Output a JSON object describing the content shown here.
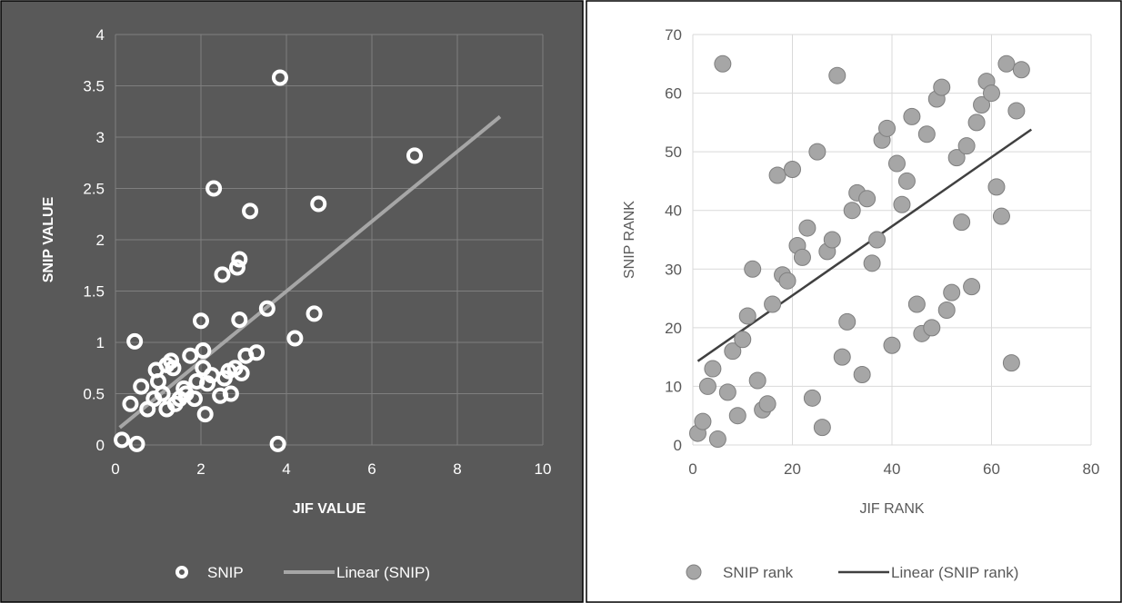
{
  "chart_data": [
    {
      "type": "scatter",
      "xlabel": "JIF VALUE",
      "ylabel": "SNIP VALUE",
      "xlim": [
        0,
        10
      ],
      "ylim": [
        0,
        4
      ],
      "xticks": [
        "0",
        "2",
        "4",
        "6",
        "8",
        "10"
      ],
      "yticks": [
        "0",
        "0.5",
        "1",
        "1.5",
        "2",
        "2.5",
        "3",
        "3.5",
        "4"
      ],
      "grid": true,
      "legend_position": "bottom",
      "colors": {
        "background": "#595959",
        "marker": "#ffffff",
        "trendline": "#a6a6a6",
        "text": "#ffffff",
        "grid": "#7f7f7f"
      },
      "series": [
        {
          "name": "SNIP",
          "points": [
            [
              0.15,
              0.05
            ],
            [
              0.5,
              0.01
            ],
            [
              3.8,
              0.01
            ],
            [
              0.45,
              1.01
            ],
            [
              0.35,
              0.4
            ],
            [
              0.6,
              0.57
            ],
            [
              0.75,
              0.35
            ],
            [
              0.9,
              0.45
            ],
            [
              0.95,
              0.73
            ],
            [
              1.0,
              0.62
            ],
            [
              1.1,
              0.5
            ],
            [
              1.2,
              0.35
            ],
            [
              1.2,
              0.78
            ],
            [
              1.3,
              0.82
            ],
            [
              1.35,
              0.75
            ],
            [
              1.4,
              0.4
            ],
            [
              1.5,
              0.45
            ],
            [
              1.6,
              0.55
            ],
            [
              1.65,
              0.5
            ],
            [
              1.75,
              0.87
            ],
            [
              1.85,
              0.45
            ],
            [
              1.9,
              0.62
            ],
            [
              2.0,
              1.21
            ],
            [
              2.05,
              0.75
            ],
            [
              2.05,
              0.92
            ],
            [
              2.1,
              0.3
            ],
            [
              2.15,
              0.6
            ],
            [
              2.25,
              0.68
            ],
            [
              2.3,
              2.5
            ],
            [
              2.45,
              0.48
            ],
            [
              2.5,
              1.66
            ],
            [
              2.55,
              0.65
            ],
            [
              2.65,
              0.72
            ],
            [
              2.7,
              0.5
            ],
            [
              2.8,
              0.75
            ],
            [
              2.85,
              1.73
            ],
            [
              2.9,
              1.22
            ],
            [
              2.9,
              1.81
            ],
            [
              2.95,
              0.7
            ],
            [
              3.05,
              0.87
            ],
            [
              3.15,
              2.28
            ],
            [
              3.3,
              0.9
            ],
            [
              3.55,
              1.33
            ],
            [
              3.85,
              3.58
            ],
            [
              4.2,
              1.04
            ],
            [
              4.65,
              1.28
            ],
            [
              4.75,
              2.35
            ],
            [
              7.0,
              2.82
            ]
          ]
        },
        {
          "name": "Linear (SNIP)",
          "kind": "trendline",
          "from": [
            0.1,
            0.17
          ],
          "to": [
            9.0,
            3.2
          ]
        }
      ]
    },
    {
      "type": "scatter",
      "xlabel": "JIF RANK",
      "ylabel": "SNIP RANK",
      "xlim": [
        0,
        80
      ],
      "ylim": [
        0,
        70
      ],
      "xticks": [
        "0",
        "20",
        "40",
        "60",
        "80"
      ],
      "yticks": [
        "0",
        "10",
        "20",
        "30",
        "40",
        "50",
        "60",
        "70"
      ],
      "grid": true,
      "legend_position": "bottom",
      "colors": {
        "background": "#ffffff",
        "marker": "#a6a6a6",
        "trendline": "#404040",
        "text": "#595959",
        "grid": "#d9d9d9"
      },
      "series": [
        {
          "name": "SNIP rank",
          "points": [
            [
              1,
              2
            ],
            [
              2,
              4
            ],
            [
              3,
              10
            ],
            [
              4,
              13
            ],
            [
              5,
              1
            ],
            [
              6,
              65
            ],
            [
              7,
              9
            ],
            [
              8,
              16
            ],
            [
              9,
              5
            ],
            [
              10,
              18
            ],
            [
              11,
              22
            ],
            [
              12,
              30
            ],
            [
              13,
              11
            ],
            [
              14,
              6
            ],
            [
              15,
              7
            ],
            [
              16,
              24
            ],
            [
              17,
              46
            ],
            [
              18,
              29
            ],
            [
              19,
              28
            ],
            [
              20,
              47
            ],
            [
              21,
              34
            ],
            [
              22,
              32
            ],
            [
              23,
              37
            ],
            [
              24,
              8
            ],
            [
              25,
              50
            ],
            [
              26,
              3
            ],
            [
              27,
              33
            ],
            [
              28,
              35
            ],
            [
              29,
              63
            ],
            [
              30,
              15
            ],
            [
              31,
              21
            ],
            [
              32,
              40
            ],
            [
              33,
              43
            ],
            [
              34,
              12
            ],
            [
              35,
              42
            ],
            [
              36,
              31
            ],
            [
              37,
              35
            ],
            [
              38,
              52
            ],
            [
              39,
              54
            ],
            [
              40,
              17
            ],
            [
              41,
              48
            ],
            [
              42,
              41
            ],
            [
              43,
              45
            ],
            [
              44,
              56
            ],
            [
              45,
              24
            ],
            [
              46,
              19
            ],
            [
              47,
              53
            ],
            [
              48,
              20
            ],
            [
              49,
              59
            ],
            [
              50,
              61
            ],
            [
              51,
              23
            ],
            [
              52,
              26
            ],
            [
              53,
              49
            ],
            [
              54,
              38
            ],
            [
              55,
              51
            ],
            [
              56,
              27
            ],
            [
              57,
              55
            ],
            [
              58,
              58
            ],
            [
              59,
              62
            ],
            [
              60,
              60
            ],
            [
              61,
              44
            ],
            [
              62,
              39
            ],
            [
              63,
              65
            ],
            [
              64,
              14
            ],
            [
              65,
              57
            ],
            [
              66,
              64
            ]
          ]
        },
        {
          "name": "Linear (SNIP rank)",
          "kind": "trendline",
          "from": [
            1,
            14.3
          ],
          "to": [
            68,
            53.8
          ]
        }
      ]
    }
  ]
}
